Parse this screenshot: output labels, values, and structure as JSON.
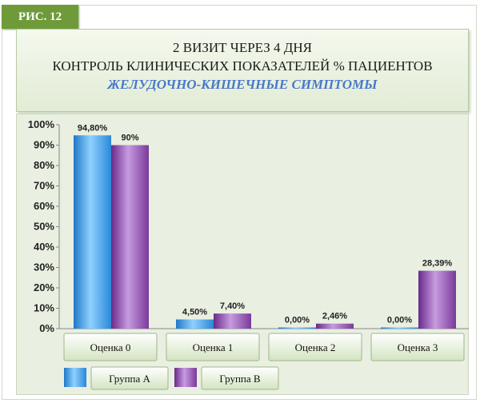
{
  "figure_label": "РИС. 12",
  "title": {
    "line1": "2 ВИЗИТ ЧЕРЕЗ 4 ДНЯ",
    "line2": "КОНТРОЛЬ КЛИНИЧЕСКИХ ПОКАЗАТЕЛЕЙ % ПАЦИЕНТОВ",
    "line3": "ЖЕЛУДОЧНО-КИШЕЧНЫЕ СИМПТОМЫ"
  },
  "colors": {
    "series_a": "#3aa0e8",
    "series_b": "#8a4aa6",
    "accent": "#4a79c9",
    "tab": "#6f9a3a"
  },
  "chart_data": {
    "type": "bar",
    "categories": [
      "Оценка 0",
      "Оценка 1",
      "Оценка 2",
      "Оценка 3"
    ],
    "series": [
      {
        "name": "Группа А",
        "values": [
          94.8,
          4.5,
          0.0,
          0.0
        ],
        "labels": [
          "94,80%",
          "4,50%",
          "0,00%",
          "0,00%"
        ]
      },
      {
        "name": "Группа В",
        "values": [
          90,
          7.4,
          2.46,
          28.39
        ],
        "labels": [
          "90%",
          "7,40%",
          "2,46%",
          "28,39%"
        ]
      }
    ],
    "yticks": [
      "0%",
      "10%",
      "20%",
      "30%",
      "40%",
      "50%",
      "60%",
      "70%",
      "80%",
      "90%",
      "100%"
    ],
    "ylim": [
      0,
      100
    ],
    "grid": false,
    "legend_position": "bottom-left"
  }
}
